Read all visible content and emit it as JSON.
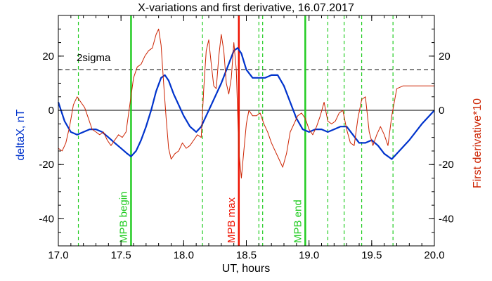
{
  "chart_data": {
    "type": "line",
    "title": "X-variations and first derivative, 16.07.2017",
    "xlabel": "UT, hours",
    "ylabel_left": "deltaX, nT",
    "ylabel_right": "First derivative*10",
    "xlim": [
      17.0,
      20.0
    ],
    "ylim": [
      -50,
      35
    ],
    "x_ticks": [
      "17.0",
      "17.5",
      "18.0",
      "18.5",
      "19.0",
      "19.5",
      "20.0"
    ],
    "y_ticks_left": [
      "20",
      "0",
      "-20",
      "-40"
    ],
    "y_ticks_right": [
      "20",
      "0",
      "-20",
      "-40"
    ],
    "colors": {
      "deltaX": "#0033cc",
      "derivative": "#cc2200",
      "mpb_lines": "#22cc22",
      "mpb_max": "#ee1100",
      "reference": "#000000"
    },
    "sigma_level": 15,
    "sigma_label": "2sigma",
    "zero_level": 0,
    "series": [
      {
        "key": "deltaX",
        "x": [
          17.0,
          17.05,
          17.1,
          17.15,
          17.2,
          17.25,
          17.3,
          17.35,
          17.4,
          17.45,
          17.5,
          17.55,
          17.58,
          17.62,
          17.66,
          17.7,
          17.74,
          17.78,
          17.82,
          17.85,
          17.88,
          17.92,
          17.96,
          18.0,
          18.05,
          18.1,
          18.14,
          18.18,
          18.22,
          18.26,
          18.3,
          18.35,
          18.4,
          18.43,
          18.46,
          18.5,
          18.55,
          18.6,
          18.65,
          18.7,
          18.75,
          18.8,
          18.85,
          18.9,
          18.95,
          19.0,
          19.05,
          19.1,
          19.15,
          19.2,
          19.25,
          19.3,
          19.35,
          19.4,
          19.45,
          19.5,
          19.55,
          19.6,
          19.66,
          19.72,
          19.8,
          19.9,
          20.0
        ],
        "y": [
          3,
          -4,
          -8,
          -9,
          -8,
          -7,
          -7,
          -8,
          -10,
          -12,
          -14,
          -16,
          -17,
          -15,
          -11,
          -6,
          0,
          7,
          12,
          13,
          11,
          6,
          2,
          -2,
          -6,
          -8,
          -6,
          -2,
          2,
          6,
          10,
          16,
          22,
          23,
          21,
          15,
          12,
          12,
          12,
          13,
          13,
          9,
          3,
          -3,
          -7,
          -8,
          -7,
          -7,
          -8,
          -7,
          -6,
          -6,
          -9,
          -12,
          -12,
          -11,
          -13,
          -16,
          -18,
          -15,
          -11,
          -5,
          0
        ]
      },
      {
        "key": "derivative",
        "x": [
          17.0,
          17.03,
          17.06,
          17.09,
          17.12,
          17.15,
          17.18,
          17.21,
          17.24,
          17.27,
          17.3,
          17.33,
          17.36,
          17.39,
          17.42,
          17.45,
          17.48,
          17.51,
          17.54,
          17.57,
          17.6,
          17.63,
          17.66,
          17.69,
          17.72,
          17.75,
          17.78,
          17.8,
          17.82,
          17.84,
          17.86,
          17.88,
          17.9,
          17.93,
          17.96,
          17.99,
          18.02,
          18.05,
          18.08,
          18.11,
          18.14,
          18.16,
          18.18,
          18.2,
          18.22,
          18.24,
          18.26,
          18.28,
          18.3,
          18.32,
          18.34,
          18.36,
          18.38,
          18.4,
          18.42,
          18.44,
          18.46,
          18.48,
          18.5,
          18.52,
          18.55,
          18.58,
          18.61,
          18.64,
          18.67,
          18.7,
          18.73,
          18.76,
          18.79,
          18.82,
          18.85,
          18.88,
          18.91,
          18.94,
          18.97,
          19.0,
          19.03,
          19.06,
          19.09,
          19.12,
          19.15,
          19.18,
          19.21,
          19.24,
          19.27,
          19.3,
          19.33,
          19.36,
          19.39,
          19.42,
          19.45,
          19.48,
          19.51,
          19.54,
          19.57,
          19.6,
          19.63,
          19.66,
          19.7,
          19.75,
          19.8,
          19.9,
          20.0
        ],
        "y": [
          -14,
          -15,
          -12,
          -6,
          2,
          5,
          3,
          1,
          -3,
          -7,
          -8,
          -9,
          -8,
          -11,
          -13,
          -11,
          -9,
          -10,
          -8,
          2,
          12,
          16,
          17,
          20,
          22,
          23,
          28,
          30,
          24,
          10,
          -3,
          -14,
          -18,
          -16,
          -15,
          -12,
          -14,
          -13,
          -11,
          -9,
          -10,
          8,
          22,
          26,
          17,
          9,
          8,
          20,
          28,
          22,
          10,
          6,
          12,
          25,
          15,
          -15,
          -25,
          -15,
          -5,
          0,
          -2,
          -2,
          -1,
          -5,
          -8,
          -12,
          -15,
          -18,
          -21,
          -16,
          -8,
          -5,
          -2,
          -1,
          -3,
          -7,
          -9,
          -6,
          -2,
          3,
          -4,
          -5,
          -4,
          -1,
          0,
          -7,
          -12,
          -13,
          -3,
          4,
          5,
          -8,
          -13,
          -9,
          -6,
          -9,
          -13,
          -2,
          8,
          9,
          9,
          9,
          9
        ]
      }
    ],
    "vertical_markers": [
      {
        "x": 17.16,
        "style": "dashed",
        "color_key": "mpb_lines"
      },
      {
        "x": 17.58,
        "style": "solid",
        "color_key": "mpb_lines",
        "label": "MPB begin"
      },
      {
        "x": 18.15,
        "style": "dashed",
        "color_key": "mpb_lines"
      },
      {
        "x": 18.44,
        "style": "solid",
        "color_key": "mpb_max",
        "label": "MPB max"
      },
      {
        "x": 18.6,
        "style": "dashed",
        "color_key": "mpb_lines"
      },
      {
        "x": 18.63,
        "style": "dashed",
        "color_key": "mpb_lines"
      },
      {
        "x": 18.97,
        "style": "solid",
        "color_key": "mpb_lines",
        "label": "MPB end"
      },
      {
        "x": 19.15,
        "style": "dashed",
        "color_key": "mpb_lines"
      },
      {
        "x": 19.28,
        "style": "dashed",
        "color_key": "mpb_lines"
      },
      {
        "x": 19.42,
        "style": "dashed",
        "color_key": "mpb_lines"
      },
      {
        "x": 19.67,
        "style": "dashed",
        "color_key": "mpb_lines"
      }
    ]
  }
}
